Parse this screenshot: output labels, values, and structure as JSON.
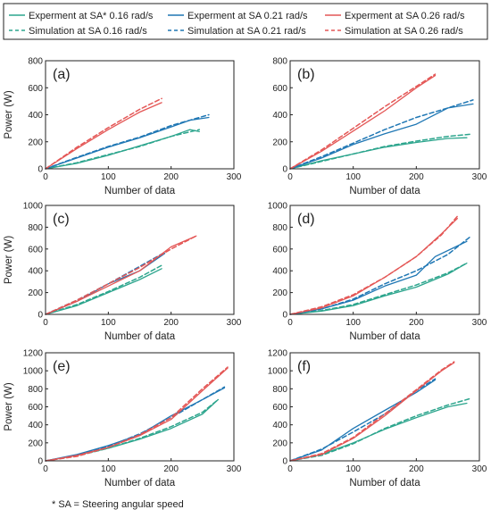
{
  "legend": [
    {
      "label": "Experment at SA* 0.16 rad/s",
      "color": "#2ca58d",
      "dashed": false
    },
    {
      "label": "Experment at SA 0.21 rad/s",
      "color": "#1f77b4",
      "dashed": false
    },
    {
      "label": "Experment at SA 0.26 rad/s",
      "color": "#e45756",
      "dashed": false
    },
    {
      "label": "Simulation at SA 0.16 rad/s",
      "color": "#2ca58d",
      "dashed": true
    },
    {
      "label": "Simulation at SA 0.21 rad/s",
      "color": "#1f77b4",
      "dashed": true
    },
    {
      "label": "Simulation at SA 0.26 rad/s",
      "color": "#e45756",
      "dashed": true
    }
  ],
  "footnote": "* SA = Steering angular speed",
  "chart_data": [
    {
      "type": "line",
      "panel": "(a)",
      "xlabel": "Number of data",
      "ylabel": "Power (W)",
      "xlim": [
        0,
        300
      ],
      "ylim": [
        0,
        800
      ],
      "xticks": [
        0,
        100,
        200,
        300
      ],
      "yticks": [
        0,
        200,
        400,
        600,
        800
      ],
      "series": [
        {
          "name": "Experment at SA* 0.16 rad/s",
          "color": "#2ca58d",
          "dashed": false,
          "x": [
            0,
            50,
            100,
            150,
            200,
            230,
            245
          ],
          "y": [
            0,
            40,
            100,
            170,
            240,
            290,
            275
          ]
        },
        {
          "name": "Simulation at SA 0.16 rad/s",
          "color": "#2ca58d",
          "dashed": true,
          "x": [
            0,
            50,
            100,
            150,
            200,
            245
          ],
          "y": [
            0,
            45,
            105,
            165,
            240,
            290
          ]
        },
        {
          "name": "Experment at SA 0.21 rad/s",
          "color": "#1f77b4",
          "dashed": false,
          "x": [
            0,
            50,
            100,
            150,
            200,
            230,
            260
          ],
          "y": [
            0,
            80,
            160,
            230,
            310,
            360,
            380
          ]
        },
        {
          "name": "Simulation at SA 0.21 rad/s",
          "color": "#1f77b4",
          "dashed": true,
          "x": [
            0,
            50,
            100,
            150,
            200,
            260
          ],
          "y": [
            0,
            85,
            165,
            235,
            320,
            400
          ]
        },
        {
          "name": "Experment at SA 0.26 rad/s",
          "color": "#e45756",
          "dashed": false,
          "x": [
            0,
            50,
            100,
            150,
            185
          ],
          "y": [
            0,
            150,
            290,
            420,
            490
          ]
        },
        {
          "name": "Simulation at SA 0.26 rad/s",
          "color": "#e45756",
          "dashed": true,
          "x": [
            0,
            50,
            100,
            150,
            185
          ],
          "y": [
            0,
            160,
            305,
            440,
            520
          ]
        }
      ]
    },
    {
      "type": "line",
      "panel": "(b)",
      "xlabel": "Number of data",
      "ylabel": "",
      "xlim": [
        0,
        300
      ],
      "ylim": [
        0,
        800
      ],
      "xticks": [
        0,
        100,
        200,
        300
      ],
      "yticks": [
        0,
        200,
        400,
        600,
        800
      ],
      "series": [
        {
          "name": "Experment at SA* 0.16 rad/s",
          "color": "#2ca58d",
          "dashed": false,
          "x": [
            0,
            50,
            100,
            150,
            200,
            250,
            280
          ],
          "y": [
            0,
            60,
            110,
            160,
            195,
            225,
            230
          ]
        },
        {
          "name": "Simulation at SA 0.16 rad/s",
          "color": "#2ca58d",
          "dashed": true,
          "x": [
            0,
            50,
            100,
            150,
            200,
            250,
            285
          ],
          "y": [
            0,
            55,
            110,
            165,
            205,
            240,
            255
          ]
        },
        {
          "name": "Experment at SA 0.21 rad/s",
          "color": "#1f77b4",
          "dashed": false,
          "x": [
            0,
            50,
            100,
            150,
            200,
            250,
            290
          ],
          "y": [
            0,
            80,
            180,
            260,
            330,
            450,
            480
          ]
        },
        {
          "name": "Simulation at SA 0.21 rad/s",
          "color": "#1f77b4",
          "dashed": true,
          "x": [
            0,
            50,
            100,
            150,
            200,
            250,
            290
          ],
          "y": [
            0,
            90,
            190,
            290,
            380,
            450,
            510
          ]
        },
        {
          "name": "Experment at SA 0.26 rad/s",
          "color": "#e45756",
          "dashed": false,
          "x": [
            0,
            50,
            100,
            150,
            200,
            230
          ],
          "y": [
            0,
            130,
            280,
            430,
            600,
            690
          ]
        },
        {
          "name": "Simulation at SA 0.26 rad/s",
          "color": "#e45756",
          "dashed": true,
          "x": [
            0,
            50,
            100,
            150,
            200,
            230
          ],
          "y": [
            0,
            140,
            300,
            460,
            610,
            700
          ]
        }
      ]
    },
    {
      "type": "line",
      "panel": "(c)",
      "xlabel": "Number of data",
      "ylabel": "Power (W)",
      "xlim": [
        0,
        300
      ],
      "ylim": [
        0,
        1000
      ],
      "xticks": [
        0,
        100,
        200,
        300
      ],
      "yticks": [
        0,
        200,
        400,
        600,
        800,
        1000
      ],
      "series": [
        {
          "name": "Experment at SA* 0.16 rad/s",
          "color": "#2ca58d",
          "dashed": false,
          "x": [
            0,
            50,
            100,
            150,
            185
          ],
          "y": [
            0,
            80,
            200,
            320,
            420
          ]
        },
        {
          "name": "Simulation at SA 0.16 rad/s",
          "color": "#2ca58d",
          "dashed": true,
          "x": [
            0,
            50,
            100,
            150,
            185
          ],
          "y": [
            0,
            90,
            210,
            340,
            450
          ]
        },
        {
          "name": "Experment at SA 0.21 rad/s",
          "color": "#1f77b4",
          "dashed": false,
          "x": [
            0,
            50,
            100,
            150,
            190
          ],
          "y": [
            0,
            120,
            280,
            400,
            560
          ]
        },
        {
          "name": "Simulation at SA 0.21 rad/s",
          "color": "#1f77b4",
          "dashed": true,
          "x": [
            0,
            50,
            100,
            150,
            190
          ],
          "y": [
            0,
            130,
            280,
            440,
            570
          ]
        },
        {
          "name": "Experment at SA 0.26 rad/s",
          "color": "#e45756",
          "dashed": false,
          "x": [
            0,
            50,
            100,
            150,
            200,
            240
          ],
          "y": [
            0,
            120,
            260,
            400,
            620,
            720
          ]
        },
        {
          "name": "Simulation at SA 0.26 rad/s",
          "color": "#e45756",
          "dashed": true,
          "x": [
            0,
            50,
            100,
            150,
            200,
            240
          ],
          "y": [
            0,
            130,
            280,
            430,
            600,
            720
          ]
        }
      ]
    },
    {
      "type": "line",
      "panel": "(d)",
      "xlabel": "Number of data",
      "ylabel": "",
      "xlim": [
        0,
        300
      ],
      "ylim": [
        0,
        1000
      ],
      "xticks": [
        0,
        100,
        200,
        300
      ],
      "yticks": [
        0,
        200,
        400,
        600,
        800,
        1000
      ],
      "series": [
        {
          "name": "Experment at SA* 0.16 rad/s",
          "color": "#2ca58d",
          "dashed": false,
          "x": [
            0,
            50,
            100,
            150,
            200,
            250,
            280
          ],
          "y": [
            0,
            30,
            80,
            170,
            250,
            370,
            470
          ]
        },
        {
          "name": "Simulation at SA 0.16 rad/s",
          "color": "#2ca58d",
          "dashed": true,
          "x": [
            0,
            50,
            100,
            150,
            200,
            250,
            280
          ],
          "y": [
            0,
            35,
            90,
            180,
            270,
            380,
            470
          ]
        },
        {
          "name": "Experment at SA 0.21 rad/s",
          "color": "#1f77b4",
          "dashed": false,
          "x": [
            0,
            50,
            100,
            150,
            200,
            230,
            280
          ],
          "y": [
            0,
            50,
            130,
            260,
            360,
            530,
            670
          ]
        },
        {
          "name": "Simulation at SA 0.21 rad/s",
          "color": "#1f77b4",
          "dashed": true,
          "x": [
            0,
            50,
            100,
            150,
            200,
            250,
            285
          ],
          "y": [
            0,
            50,
            140,
            280,
            400,
            550,
            710
          ]
        },
        {
          "name": "Experment at SA 0.26 rad/s",
          "color": "#e45756",
          "dashed": false,
          "x": [
            0,
            50,
            100,
            150,
            200,
            240,
            265
          ],
          "y": [
            0,
            60,
            170,
            340,
            530,
            740,
            880
          ]
        },
        {
          "name": "Simulation at SA 0.26 rad/s",
          "color": "#e45756",
          "dashed": true,
          "x": [
            0,
            50,
            100,
            150,
            200,
            240,
            265
          ],
          "y": [
            0,
            70,
            180,
            340,
            530,
            730,
            900
          ]
        }
      ]
    },
    {
      "type": "line",
      "panel": "(e)",
      "xlabel": "Number of data",
      "ylabel": "Power (W)",
      "xlim": [
        0,
        300
      ],
      "ylim": [
        0,
        1200
      ],
      "xticks": [
        0,
        100,
        200,
        300
      ],
      "yticks": [
        0,
        200,
        400,
        600,
        800,
        1000,
        1200
      ],
      "series": [
        {
          "name": "Experment at SA* 0.16 rad/s",
          "color": "#2ca58d",
          "dashed": false,
          "x": [
            0,
            50,
            100,
            150,
            200,
            250,
            275
          ],
          "y": [
            0,
            60,
            140,
            240,
            360,
            520,
            680
          ]
        },
        {
          "name": "Simulation at SA 0.16 rad/s",
          "color": "#2ca58d",
          "dashed": true,
          "x": [
            0,
            50,
            100,
            150,
            200,
            250,
            275
          ],
          "y": [
            0,
            55,
            140,
            250,
            380,
            540,
            680
          ]
        },
        {
          "name": "Experment at SA 0.21 rad/s",
          "color": "#1f77b4",
          "dashed": false,
          "x": [
            0,
            50,
            100,
            150,
            200,
            250,
            285
          ],
          "y": [
            0,
            70,
            170,
            290,
            500,
            680,
            810
          ]
        },
        {
          "name": "Simulation at SA 0.21 rad/s",
          "color": "#1f77b4",
          "dashed": true,
          "x": [
            0,
            50,
            100,
            150,
            200,
            250,
            285
          ],
          "y": [
            0,
            60,
            160,
            300,
            480,
            680,
            820
          ]
        },
        {
          "name": "Experment at SA 0.26 rad/s",
          "color": "#e45756",
          "dashed": false,
          "x": [
            0,
            50,
            100,
            150,
            200,
            250,
            290
          ],
          "y": [
            0,
            60,
            150,
            280,
            460,
            780,
            1030
          ]
        },
        {
          "name": "Simulation at SA 0.26 rad/s",
          "color": "#e45756",
          "dashed": true,
          "x": [
            0,
            50,
            100,
            150,
            200,
            250,
            290
          ],
          "y": [
            0,
            50,
            150,
            290,
            480,
            800,
            1040
          ]
        }
      ]
    },
    {
      "type": "line",
      "panel": "(f)",
      "xlabel": "Number of data",
      "ylabel": "",
      "xlim": [
        0,
        300
      ],
      "ylim": [
        0,
        1200
      ],
      "xticks": [
        0,
        100,
        200,
        300
      ],
      "yticks": [
        0,
        200,
        400,
        600,
        800,
        1000,
        1200
      ],
      "series": [
        {
          "name": "Experment at SA* 0.16 rad/s",
          "color": "#2ca58d",
          "dashed": false,
          "x": [
            0,
            50,
            100,
            150,
            200,
            250,
            280
          ],
          "y": [
            0,
            70,
            200,
            350,
            480,
            600,
            640
          ]
        },
        {
          "name": "Simulation at SA 0.16 rad/s",
          "color": "#2ca58d",
          "dashed": true,
          "x": [
            0,
            50,
            100,
            150,
            200,
            250,
            285
          ],
          "y": [
            0,
            60,
            190,
            360,
            500,
            620,
            690
          ]
        },
        {
          "name": "Experment at SA 0.21 rad/s",
          "color": "#1f77b4",
          "dashed": false,
          "x": [
            0,
            50,
            100,
            150,
            200,
            230
          ],
          "y": [
            0,
            120,
            360,
            560,
            760,
            900
          ]
        },
        {
          "name": "Simulation at SA 0.21 rad/s",
          "color": "#1f77b4",
          "dashed": true,
          "x": [
            0,
            50,
            100,
            150,
            200,
            230
          ],
          "y": [
            0,
            130,
            320,
            520,
            780,
            910
          ]
        },
        {
          "name": "Experment at SA 0.26 rad/s",
          "color": "#e45756",
          "dashed": false,
          "x": [
            0,
            50,
            100,
            150,
            200,
            240,
            260
          ],
          "y": [
            0,
            70,
            250,
            500,
            780,
            1000,
            1090
          ]
        },
        {
          "name": "Simulation at SA 0.26 rad/s",
          "color": "#e45756",
          "dashed": true,
          "x": [
            0,
            50,
            100,
            150,
            200,
            240,
            260
          ],
          "y": [
            0,
            80,
            260,
            520,
            790,
            1010,
            1100
          ]
        }
      ]
    }
  ]
}
